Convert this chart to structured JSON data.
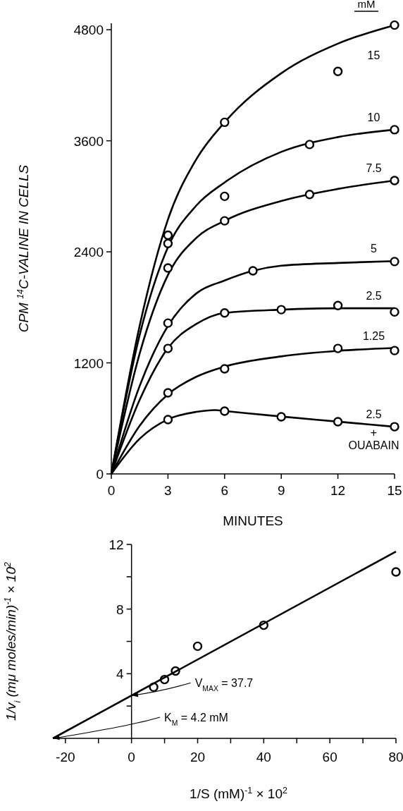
{
  "chart_data": [
    {
      "type": "line",
      "ylabel": "CPM $^{14}$C-VALINE IN CELLS",
      "xlabel": "MINUTES",
      "annotations": [
        "mM"
      ],
      "legend": false,
      "grid": false,
      "xlim": [
        0,
        15
      ],
      "xticks": [
        0,
        3,
        6,
        9,
        12,
        15
      ],
      "ylim": [
        0,
        4870
      ],
      "yticks": [
        0,
        1200,
        2400,
        3600,
        4800
      ],
      "series": [
        {
          "name": "15",
          "color": "#000000",
          "marker": "none",
          "x": [
            0,
            1.5,
            3,
            4.5,
            6,
            9,
            12,
            15
          ],
          "values": [
            0,
            1600,
            2750,
            3400,
            3800,
            4330,
            4650,
            4850
          ]
        },
        {
          "name": "10",
          "color": "#000000",
          "marker": "none",
          "x": [
            0,
            1.5,
            3,
            4.5,
            6,
            9,
            12,
            15
          ],
          "values": [
            0,
            1500,
            2450,
            2900,
            3150,
            3480,
            3640,
            3720
          ]
        },
        {
          "name": "7.5",
          "color": "#000000",
          "marker": "none",
          "x": [
            0,
            1.5,
            3,
            4.5,
            6,
            9,
            12,
            15
          ],
          "values": [
            0,
            1300,
            2150,
            2550,
            2735,
            2950,
            3080,
            3170
          ]
        },
        {
          "name": "5",
          "color": "#000000",
          "marker": "none",
          "x": [
            0,
            1.5,
            3,
            4.5,
            6,
            7.5,
            9,
            12,
            15
          ],
          "values": [
            0,
            950,
            1600,
            1950,
            2090,
            2195,
            2250,
            2280,
            2300
          ]
        },
        {
          "name": "2.5",
          "color": "#000000",
          "marker": "none",
          "x": [
            0,
            1.5,
            3,
            4.5,
            6,
            9,
            12,
            15
          ],
          "values": [
            0,
            800,
            1360,
            1620,
            1740,
            1775,
            1790,
            1790
          ]
        },
        {
          "name": "1.25",
          "color": "#000000",
          "marker": "none",
          "x": [
            0,
            1.5,
            3,
            4.5,
            6,
            9,
            12,
            15
          ],
          "values": [
            0,
            520,
            860,
            1050,
            1160,
            1270,
            1330,
            1360
          ]
        },
        {
          "name": "2.5\n+\nOUABAIN",
          "color": "#000000",
          "marker": "none",
          "x": [
            0,
            1.5,
            3,
            4.5,
            5.5,
            6,
            9,
            12,
            15
          ],
          "values": [
            0,
            380,
            590,
            670,
            690,
            680,
            620,
            565,
            510
          ]
        },
        {
          "type": "scatter",
          "color": "#000000",
          "marker": "circle",
          "x": [
            3,
            6,
            12,
            15
          ],
          "values": [
            2580,
            3800,
            4350,
            4850
          ]
        },
        {
          "type": "scatter",
          "color": "#000000",
          "marker": "circle",
          "x": [
            3,
            6,
            10.5,
            15
          ],
          "values": [
            2490,
            3000,
            3560,
            3720
          ]
        },
        {
          "type": "scatter",
          "color": "#000000",
          "marker": "circle",
          "x": [
            3,
            6,
            10.5,
            15
          ],
          "values": [
            2225,
            2735,
            3020,
            3170
          ]
        },
        {
          "type": "scatter",
          "color": "#000000",
          "marker": "circle",
          "x": [
            3,
            7.5,
            15
          ],
          "values": [
            1630,
            2195,
            2295
          ]
        },
        {
          "type": "scatter",
          "color": "#000000",
          "marker": "circle",
          "x": [
            3,
            6,
            9,
            12,
            15
          ],
          "values": [
            1356,
            1740,
            1775,
            1820,
            1750
          ]
        },
        {
          "type": "scatter",
          "color": "#000000",
          "marker": "circle",
          "x": [
            3,
            6,
            12,
            15
          ],
          "values": [
            876,
            1135,
            1356,
            1333
          ]
        },
        {
          "type": "scatter",
          "color": "#000000",
          "marker": "circle",
          "x": [
            3,
            6,
            9,
            12,
            15
          ],
          "values": [
            587,
            678,
            617,
            564,
            510
          ]
        }
      ]
    },
    {
      "type": "line",
      "ylabel": "1/v$_{i}$  (mμ moles/min)$^{-1}$ × 10$^{2}$",
      "xlabel": "1/S (mM)$^{-1}$ × 10$^{2}$",
      "legend": false,
      "grid": false,
      "xlim": [
        -23.8,
        80
      ],
      "xticks": [
        -20,
        {
          "value": -10,
          "label": null
        },
        0,
        {
          "value": 10,
          "label": null
        },
        20,
        {
          "value": 30,
          "label": null
        },
        40,
        {
          "value": 50,
          "label": null
        },
        60,
        {
          "value": 70,
          "label": null
        },
        80
      ],
      "ylim": [
        0,
        12
      ],
      "yticks": [
        {
          "value": 2,
          "label": null
        },
        4,
        {
          "value": 6,
          "label": null
        },
        8,
        {
          "value": 10,
          "label": null
        },
        12
      ],
      "annotations": [
        {
          "text": "V$_{MAX}$ = 37.7",
          "x": 0,
          "y": 2.65
        },
        {
          "text": "K$_{M}$ = 4.2 mM",
          "x": -23.8,
          "y": 0
        }
      ],
      "series": [
        {
          "type": "scatter",
          "color": "#000000",
          "marker": "circle",
          "x": [
            6.7,
            10,
            13.3,
            20,
            40,
            80
          ],
          "values": [
            3.17,
            3.64,
            4.17,
            5.7,
            7.0,
            10.3
          ]
        },
        {
          "color": "#000000",
          "marker": "none",
          "x": [
            -23.8,
            80
          ],
          "values": [
            0,
            11.56
          ]
        }
      ]
    }
  ]
}
